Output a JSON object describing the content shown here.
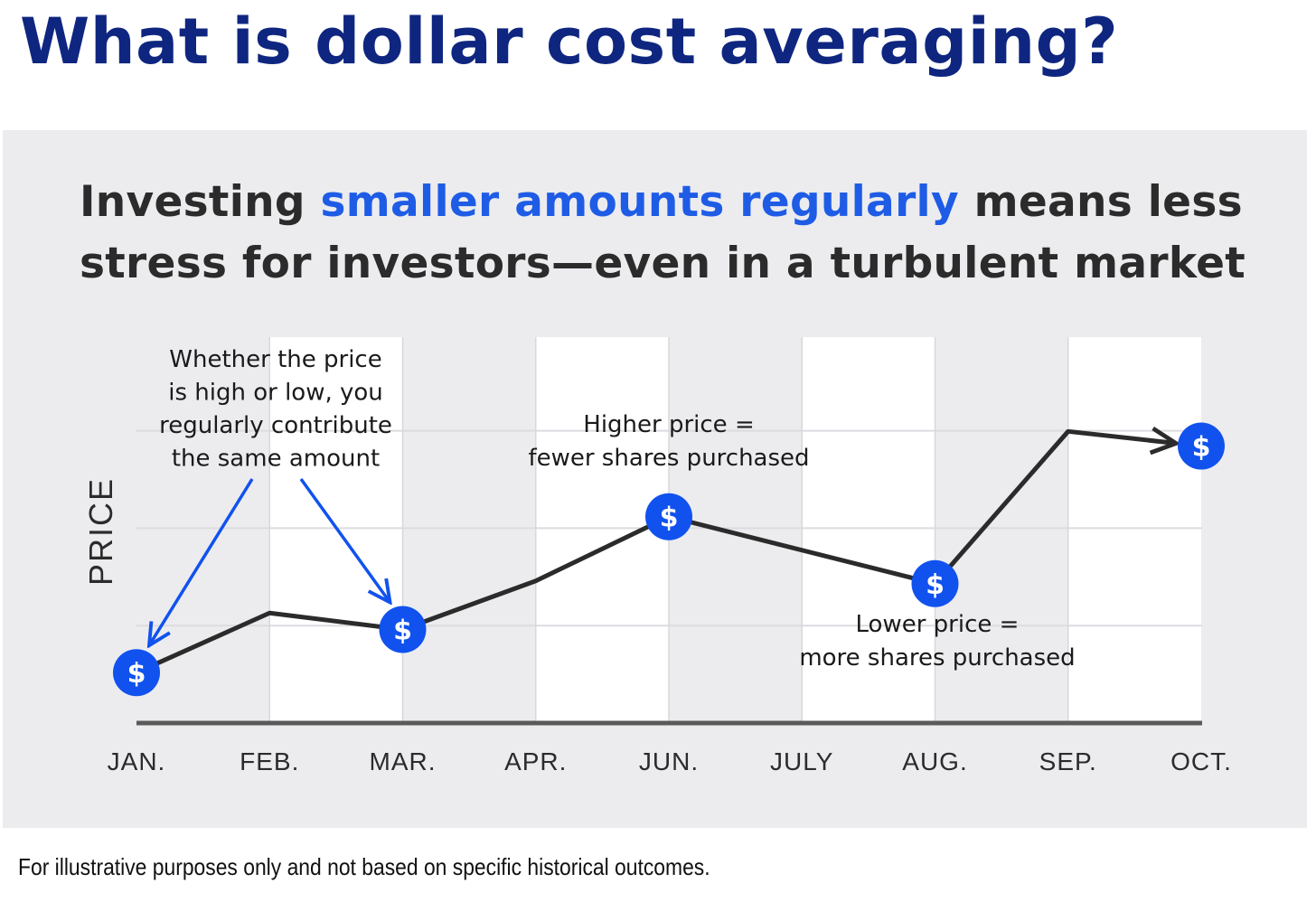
{
  "title": "What is dollar cost averaging?",
  "headline": {
    "part1": "Investing ",
    "accent": "smaller amounts regularly",
    "part2": " means less stress for investors—even in a turbulent market"
  },
  "footnote": "For illustrative purposes only and not based on specific historical outcomes.",
  "colors": {
    "title": "#0f2680",
    "accent": "#1f5ce6",
    "coin": "#1152ee",
    "line": "#2b2b2b",
    "panel": "#ececef"
  },
  "coin_icon": "dollar-coin-icon",
  "coin_symbol": "$",
  "chart_data": {
    "type": "line",
    "ylabel": "PRICE",
    "categories": [
      "JAN.",
      "FEB.",
      "MAR.",
      "APR.",
      "JUN.",
      "JULY",
      "AUG.",
      "SEP.",
      "OCT."
    ],
    "values": [
      55,
      120,
      102,
      155,
      225,
      null,
      152,
      318,
      302
    ],
    "ylim": [
      0,
      340
    ],
    "grid": true,
    "purchase_points": [
      "JAN.",
      "MAR.",
      "JUN.",
      "AUG.",
      "OCT."
    ],
    "annotations": [
      {
        "lines": [
          "Whether the price",
          "is high or low, you",
          "regularly contribute",
          "the same amount"
        ]
      },
      {
        "lines": [
          "Higher price =",
          "fewer shares purchased"
        ]
      },
      {
        "lines": [
          "Lower price =",
          "more shares purchased"
        ]
      }
    ]
  }
}
